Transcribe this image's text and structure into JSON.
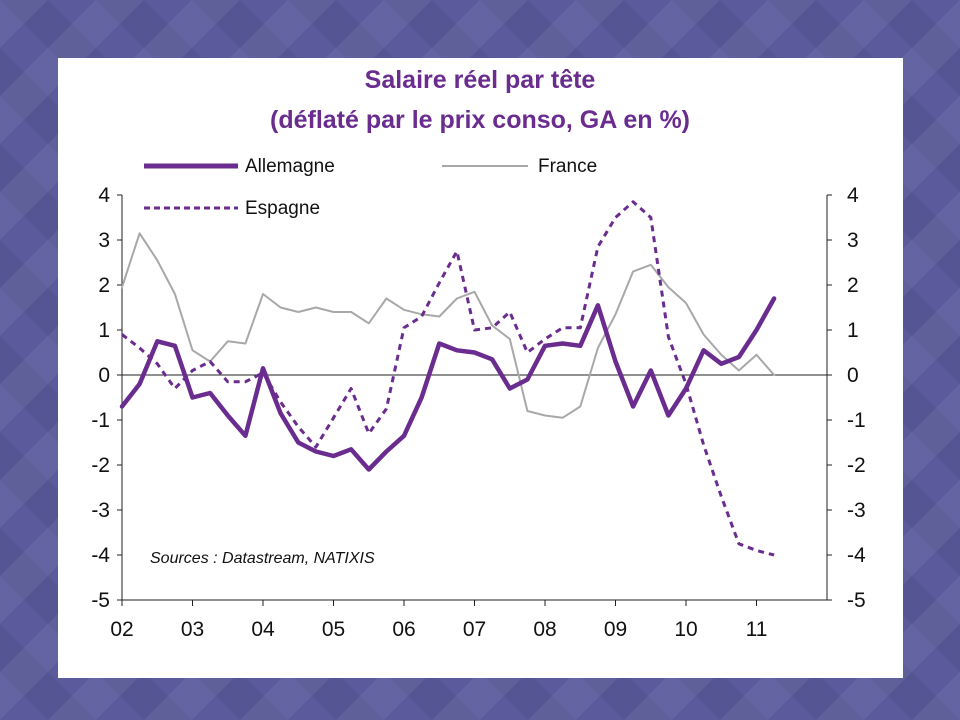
{
  "chart_data": {
    "type": "line",
    "title": "Salaire réel par tête",
    "subtitle": "(déflaté par le prix conso, GA en %)",
    "source": "Sources : Datastream, NATIXIS",
    "x_tick_labels": [
      "02",
      "03",
      "04",
      "05",
      "06",
      "07",
      "08",
      "09",
      "10",
      "11"
    ],
    "y_tick_labels": [
      "4",
      "3",
      "2",
      "1",
      "0",
      "-1",
      "-2",
      "-3",
      "-4",
      "-5"
    ],
    "ylim": [
      -5,
      4
    ],
    "xlim": [
      2002,
      2012
    ],
    "grid": false,
    "legend_position": "top",
    "series": [
      {
        "name": "Allemagne",
        "color": "#6a2c8e",
        "style": "solid-thick",
        "x": [
          2002.0,
          2002.25,
          2002.5,
          2002.75,
          2003.0,
          2003.25,
          2003.5,
          2003.75,
          2004.0,
          2004.25,
          2004.5,
          2004.75,
          2005.0,
          2005.25,
          2005.5,
          2005.75,
          2006.0,
          2006.25,
          2006.5,
          2006.75,
          2007.0,
          2007.25,
          2007.5,
          2007.75,
          2008.0,
          2008.25,
          2008.5,
          2008.75,
          2009.0,
          2009.25,
          2009.5,
          2009.75,
          2010.0,
          2010.25,
          2010.5,
          2010.75,
          2011.0,
          2011.25
        ],
        "values": [
          -0.7,
          -0.2,
          0.75,
          0.65,
          -0.5,
          -0.4,
          -0.9,
          -1.35,
          0.15,
          -0.85,
          -1.5,
          -1.7,
          -1.8,
          -1.65,
          -2.1,
          -1.7,
          -1.35,
          -0.5,
          0.7,
          0.55,
          0.5,
          0.35,
          -0.3,
          -0.1,
          0.65,
          0.7,
          0.65,
          1.55,
          0.3,
          -0.7,
          0.1,
          -0.9,
          -0.3,
          0.55,
          0.25,
          0.4,
          1.0,
          1.7
        ]
      },
      {
        "name": "France",
        "color": "#a8a8a8",
        "style": "solid-thin",
        "x": [
          2002.0,
          2002.25,
          2002.5,
          2002.75,
          2003.0,
          2003.25,
          2003.5,
          2003.75,
          2004.0,
          2004.25,
          2004.5,
          2004.75,
          2005.0,
          2005.25,
          2005.5,
          2005.75,
          2006.0,
          2006.25,
          2006.5,
          2006.75,
          2007.0,
          2007.25,
          2007.5,
          2007.75,
          2008.0,
          2008.25,
          2008.5,
          2008.75,
          2009.0,
          2009.25,
          2009.5,
          2009.75,
          2010.0,
          2010.25,
          2010.5,
          2010.75,
          2011.0,
          2011.25
        ],
        "values": [
          1.95,
          3.15,
          2.55,
          1.8,
          0.55,
          0.3,
          0.75,
          0.7,
          1.8,
          1.5,
          1.4,
          1.5,
          1.4,
          1.4,
          1.15,
          1.7,
          1.45,
          1.35,
          1.3,
          1.7,
          1.85,
          1.1,
          0.8,
          -0.8,
          -0.9,
          -0.95,
          -0.7,
          0.6,
          1.35,
          2.3,
          2.45,
          1.95,
          1.6,
          0.9,
          0.45,
          0.1,
          0.45,
          0.0
        ]
      },
      {
        "name": "Espagne",
        "color": "#6a2c8e",
        "style": "dashed",
        "x": [
          2002.0,
          2002.25,
          2002.5,
          2002.75,
          2003.0,
          2003.25,
          2003.5,
          2003.75,
          2004.0,
          2004.25,
          2004.5,
          2004.75,
          2005.0,
          2005.25,
          2005.5,
          2005.75,
          2006.0,
          2006.25,
          2006.5,
          2006.75,
          2007.0,
          2007.25,
          2007.5,
          2007.75,
          2008.0,
          2008.25,
          2008.5,
          2008.75,
          2009.0,
          2009.25,
          2009.5,
          2009.75,
          2010.0,
          2010.25,
          2010.5,
          2010.75,
          2011.0,
          2011.25
        ],
        "values": [
          0.9,
          0.6,
          0.25,
          -0.3,
          0.1,
          0.3,
          -0.15,
          -0.15,
          0.05,
          -0.6,
          -1.15,
          -1.6,
          -0.95,
          -0.3,
          -1.3,
          -0.75,
          1.05,
          1.3,
          2.05,
          2.75,
          1.0,
          1.05,
          1.4,
          0.5,
          0.8,
          1.05,
          1.05,
          2.85,
          3.5,
          3.85,
          3.5,
          0.85,
          -0.2,
          -1.55,
          -2.7,
          -3.75,
          -3.9,
          -4.0
        ]
      }
    ]
  }
}
